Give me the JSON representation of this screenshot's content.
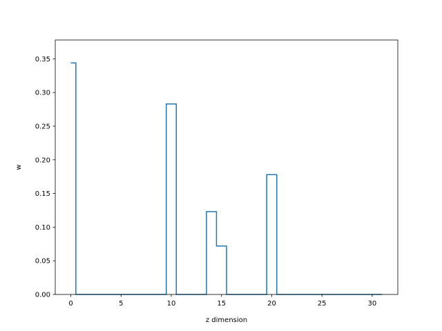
{
  "chart_data": {
    "type": "line",
    "drawstyle": "steps-mid",
    "title": "",
    "xlabel": "z dimension",
    "ylabel": "w",
    "xlim": [
      -1.55,
      32.55
    ],
    "ylim": [
      0.0,
      0.378
    ],
    "xticks": [
      0,
      5,
      10,
      15,
      20,
      25,
      30
    ],
    "xtick_labels": [
      "0",
      "5",
      "10",
      "15",
      "20",
      "25",
      "30"
    ],
    "yticks": [
      0.0,
      0.05,
      0.1,
      0.15,
      0.2,
      0.25,
      0.3,
      0.35
    ],
    "ytick_labels": [
      "0.00",
      "0.05",
      "0.10",
      "0.15",
      "0.20",
      "0.25",
      "0.30",
      "0.35"
    ],
    "grid": false,
    "color": "#1f77b4",
    "x": [
      0,
      1,
      2,
      3,
      4,
      5,
      6,
      7,
      8,
      9,
      10,
      11,
      12,
      13,
      14,
      15,
      16,
      17,
      18,
      19,
      20,
      21,
      22,
      23,
      24,
      25,
      26,
      27,
      28,
      29,
      30,
      31
    ],
    "values": [
      0.344,
      0,
      0,
      0,
      0,
      0,
      0,
      0,
      0,
      0,
      0.283,
      0,
      0,
      0,
      0.123,
      0.072,
      0,
      0,
      0,
      0,
      0.178,
      0,
      0,
      0,
      0,
      0,
      0,
      0,
      0,
      0,
      0,
      0
    ]
  }
}
